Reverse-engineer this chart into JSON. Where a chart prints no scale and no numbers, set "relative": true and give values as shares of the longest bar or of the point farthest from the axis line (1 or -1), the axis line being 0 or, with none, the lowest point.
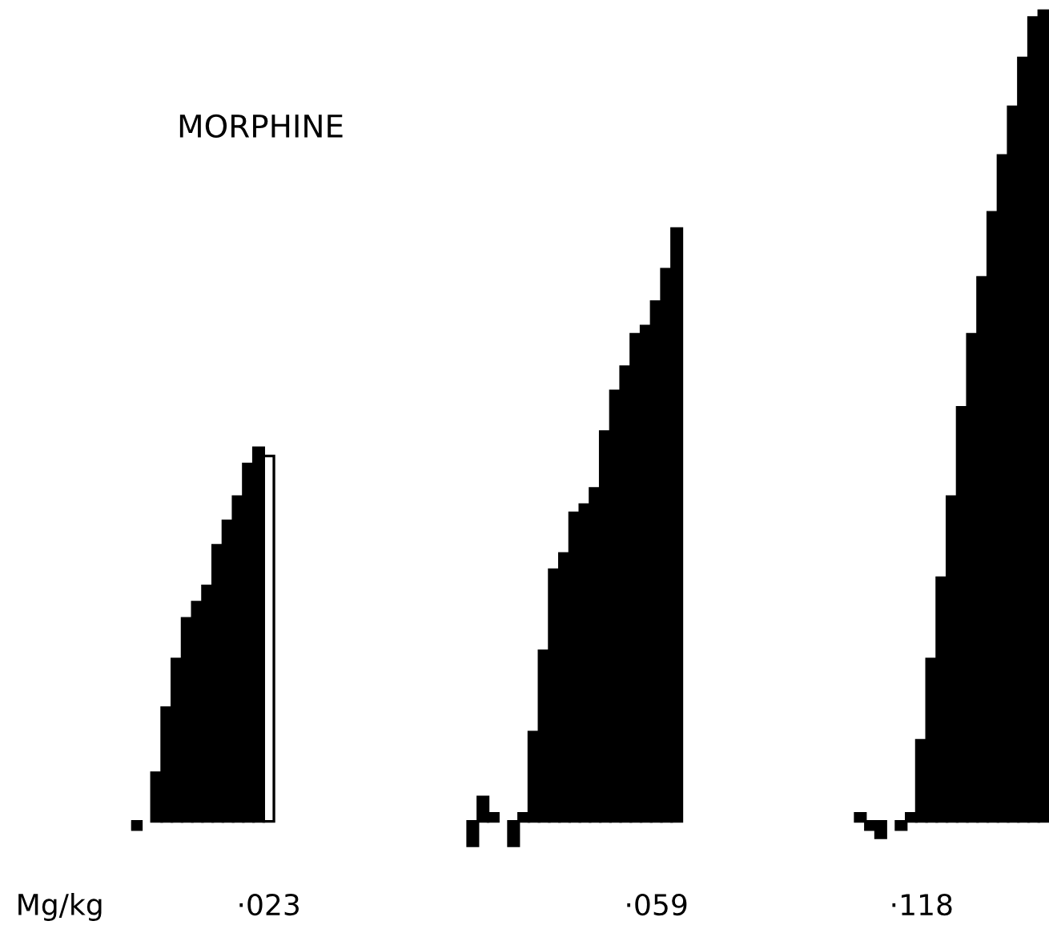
{
  "chart_data": {
    "type": "bar",
    "title": "MORPHINE",
    "relative": true,
    "categories": [
      null,
      null,
      null,
      null,
      null,
      null,
      null,
      null,
      null,
      null,
      null,
      null,
      null,
      "·023",
      null,
      null,
      null,
      null,
      null,
      null,
      null,
      null,
      null,
      null,
      null,
      null,
      null,
      null,
      null,
      null,
      null,
      null,
      null,
      null,
      null,
      null,
      null,
      null,
      null,
      null,
      null,
      null,
      null,
      null,
      null,
      null,
      null,
      null,
      null,
      null,
      null,
      "·059",
      null,
      null,
      null,
      null,
      null,
      null,
      null,
      null,
      null,
      null,
      null,
      null,
      null,
      null,
      null,
      null,
      null,
      null,
      null,
      null,
      null,
      null,
      null,
      null,
      null,
      "·118",
      null,
      null,
      null,
      null,
      null,
      null,
      null,
      null,
      null,
      null,
      null,
      null
    ],
    "series": [
      {
        "color": "#000000",
        "values": [
          -0.01,
          null,
          0.06,
          0.14,
          0.2,
          0.25,
          0.27,
          0.29,
          0.34,
          0.37,
          0.4,
          0.44,
          0.46,
          null,
          null,
          null,
          null,
          null,
          null,
          null,
          null,
          null,
          null,
          null,
          null,
          null,
          null,
          null,
          null,
          null,
          null,
          null,
          null,
          -0.03,
          0.03,
          0.01,
          null,
          -0.03,
          0.01,
          0.11,
          0.21,
          0.31,
          0.33,
          0.38,
          0.39,
          0.41,
          0.48,
          0.53,
          0.56,
          0.6,
          0.61,
          0.64,
          0.68,
          0.73,
          null,
          null,
          null,
          null,
          null,
          null,
          null,
          null,
          null,
          null,
          null,
          null,
          null,
          null,
          null,
          null,
          null,
          0.01,
          -0.01,
          -0.02,
          null,
          -0.01,
          0.01,
          0.1,
          0.2,
          0.3,
          0.4,
          0.51,
          0.6,
          0.67,
          0.75,
          0.82,
          0.88,
          0.94,
          0.99,
          1
        ]
      },
      {
        "color": "#ffffff",
        "values": [
          null,
          null,
          null,
          null,
          null,
          null,
          null,
          null,
          null,
          null,
          null,
          null,
          null,
          0.45,
          null,
          null,
          null,
          null,
          null,
          null,
          null,
          null,
          null,
          null,
          null,
          null,
          null,
          null,
          null,
          null,
          null,
          null,
          null,
          null,
          null,
          null,
          null,
          null,
          null,
          null,
          null,
          null,
          null,
          null,
          null,
          null,
          null,
          null,
          null,
          null,
          null,
          null,
          null,
          null,
          null,
          null,
          null,
          null,
          null,
          null,
          null,
          null,
          null,
          null,
          null,
          null,
          null,
          null,
          null,
          null,
          null,
          null,
          null,
          null,
          null,
          null,
          null,
          null,
          null,
          null,
          null,
          null,
          null,
          null,
          null,
          null,
          null,
          null,
          null,
          null
        ]
      }
    ],
    "annotations": [
      "Mg/kg"
    ]
  }
}
